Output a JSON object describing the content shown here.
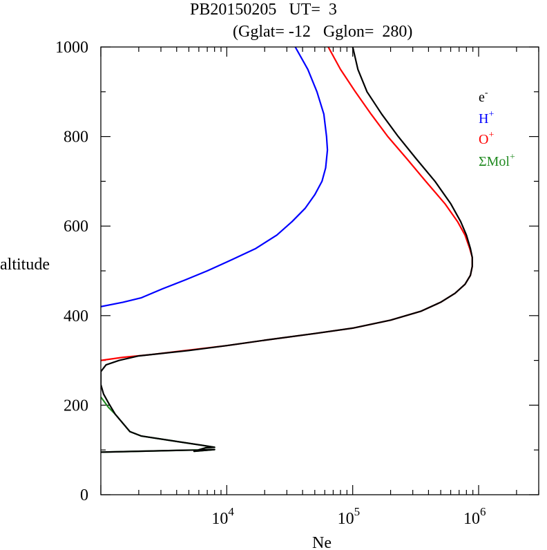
{
  "chart_data": {
    "type": "line",
    "title_line1": "PB20150205   UT=  3",
    "title_line2": "(Gglat= -12   Gglon=  280)",
    "xlabel": "Ne",
    "ylabel": "altitude",
    "x_scale": "log",
    "xlim": [
      1000,
      3000000
    ],
    "ylim": [
      0,
      1000
    ],
    "x_major_ticks": [
      10000,
      100000,
      1000000
    ],
    "x_tick_labels": [
      {
        "base": "10",
        "exp": "4"
      },
      {
        "base": "10",
        "exp": "5"
      },
      {
        "base": "10",
        "exp": "6"
      }
    ],
    "y_ticks": [
      0,
      200,
      400,
      600,
      800,
      1000
    ],
    "y_tick_labels": [
      "0",
      "200",
      "400",
      "600",
      "800",
      "1000"
    ],
    "grid": false,
    "legend_position": "top-right",
    "series": [
      {
        "name": "e",
        "name_sup": "-",
        "color": "#000000",
        "points": [
          [
            1000,
            95
          ],
          [
            8000,
            101
          ],
          [
            5500,
            97
          ],
          [
            6800,
            105
          ],
          [
            8000,
            106
          ],
          [
            6500,
            110
          ],
          [
            2100,
            131
          ],
          [
            1700,
            141
          ],
          [
            1300,
            180
          ],
          [
            1150,
            205
          ],
          [
            1050,
            225
          ],
          [
            1000,
            246
          ],
          [
            1000,
            275
          ],
          [
            1100,
            290
          ],
          [
            1400,
            300
          ],
          [
            2000,
            310
          ],
          [
            5000,
            322
          ],
          [
            10000,
            333
          ],
          [
            20000,
            345
          ],
          [
            50000,
            360
          ],
          [
            100000,
            372
          ],
          [
            200000,
            390
          ],
          [
            350000,
            410
          ],
          [
            500000,
            430
          ],
          [
            650000,
            450
          ],
          [
            780000,
            470
          ],
          [
            860000,
            490
          ],
          [
            890000,
            510
          ],
          [
            890000,
            530
          ],
          [
            860000,
            550
          ],
          [
            800000,
            580
          ],
          [
            720000,
            610
          ],
          [
            600000,
            650
          ],
          [
            450000,
            700
          ],
          [
            320000,
            750
          ],
          [
            230000,
            800
          ],
          [
            170000,
            850
          ],
          [
            130000,
            900
          ],
          [
            110000,
            950
          ],
          [
            100000,
            1000
          ]
        ]
      },
      {
        "name": "H",
        "name_sup": "+",
        "color": "#0000ff",
        "points": [
          [
            1000,
            420
          ],
          [
            1500,
            430
          ],
          [
            2100,
            440
          ],
          [
            3100,
            460
          ],
          [
            4700,
            480
          ],
          [
            7000,
            500
          ],
          [
            11000,
            525
          ],
          [
            17000,
            550
          ],
          [
            25000,
            580
          ],
          [
            33000,
            610
          ],
          [
            42000,
            640
          ],
          [
            50000,
            670
          ],
          [
            57000,
            700
          ],
          [
            61000,
            730
          ],
          [
            63000,
            770
          ],
          [
            62000,
            800
          ],
          [
            59000,
            850
          ],
          [
            52000,
            900
          ],
          [
            44000,
            950
          ],
          [
            35000,
            1000
          ]
        ]
      },
      {
        "name": "O",
        "name_sup": "+",
        "color": "#ff0000",
        "points": [
          [
            1000,
            300
          ],
          [
            1500,
            307
          ],
          [
            2500,
            313
          ],
          [
            5000,
            323
          ],
          [
            10000,
            333
          ],
          [
            20000,
            345
          ],
          [
            50000,
            360
          ],
          [
            100000,
            372
          ],
          [
            200000,
            390
          ],
          [
            350000,
            410
          ],
          [
            500000,
            430
          ],
          [
            650000,
            450
          ],
          [
            780000,
            470
          ],
          [
            860000,
            490
          ],
          [
            890000,
            510
          ],
          [
            890000,
            530
          ],
          [
            850000,
            550
          ],
          [
            780000,
            580
          ],
          [
            680000,
            610
          ],
          [
            540000,
            650
          ],
          [
            380000,
            700
          ],
          [
            270000,
            750
          ],
          [
            190000,
            800
          ],
          [
            140000,
            850
          ],
          [
            105000,
            900
          ],
          [
            80000,
            950
          ],
          [
            64000,
            1000
          ]
        ]
      },
      {
        "name": "ΣMol",
        "name_sup": "+",
        "color": "#228b22",
        "points": [
          [
            1000,
            95
          ],
          [
            8000,
            101
          ],
          [
            5500,
            97
          ],
          [
            6800,
            105
          ],
          [
            8000,
            106
          ],
          [
            6500,
            110
          ],
          [
            2100,
            131
          ],
          [
            1700,
            141
          ],
          [
            1300,
            180
          ],
          [
            1150,
            195
          ],
          [
            1050,
            210
          ],
          [
            1000,
            218
          ]
        ]
      }
    ]
  }
}
